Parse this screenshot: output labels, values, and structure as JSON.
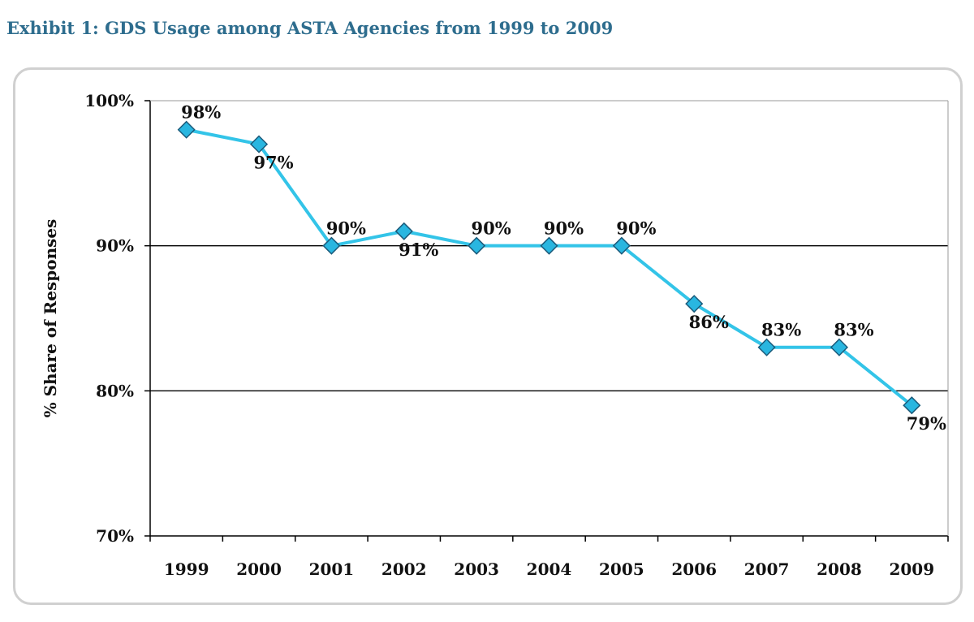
{
  "exhibit_title": "Exhibit 1: GDS Usage among ASTA Agencies from 1999 to 2009",
  "chart_data": {
    "type": "line",
    "title": "Exhibit 1: GDS Usage among ASTA Agencies from 1999 to 2009",
    "xlabel": "",
    "ylabel": "% Share of Responses",
    "categories": [
      "1999",
      "2000",
      "2001",
      "2002",
      "2003",
      "2004",
      "2005",
      "2006",
      "2007",
      "2008",
      "2009"
    ],
    "series": [
      {
        "name": "GDS Usage",
        "values": [
          98,
          97,
          90,
          91,
          90,
          90,
          90,
          86,
          83,
          83,
          79
        ],
        "labels": [
          "98%",
          "97%",
          "90%",
          "91%",
          "90%",
          "90%",
          "90%",
          "86%",
          "83%",
          "83%",
          "79%"
        ],
        "label_positions": [
          "above",
          "below",
          "above",
          "below",
          "above",
          "above",
          "above",
          "below",
          "above",
          "above",
          "below"
        ]
      }
    ],
    "ylim": [
      70,
      100
    ],
    "yticks": [
      70,
      80,
      90,
      100
    ],
    "ytick_labels": [
      "70%",
      "80%",
      "90%",
      "100%"
    ],
    "gridlines_at": [
      80,
      90
    ],
    "line_color": "#33c4e8",
    "marker_color": "#29b6e0",
    "marker_edge_color": "#1a5a7a",
    "marker": "diamond",
    "legend": "none"
  },
  "colors": {
    "title": "#2e6d8e",
    "frame": "#d0d0d0"
  }
}
